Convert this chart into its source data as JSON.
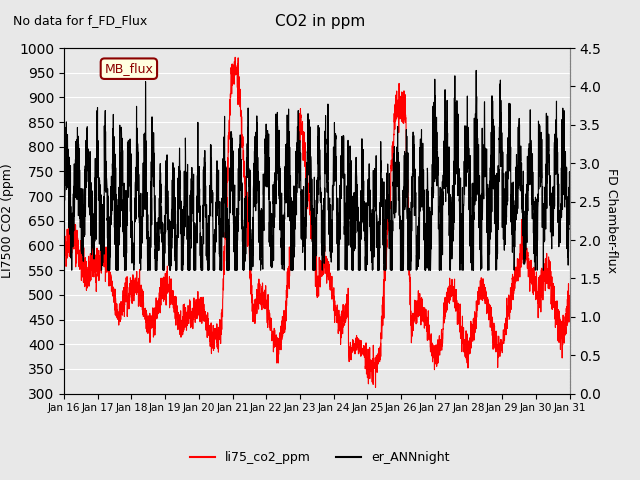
{
  "title": "CO2 in ppm",
  "subtitle": "No data for f_FD_Flux",
  "ylabel_left": "LI7500 CO2 (ppm)",
  "ylabel_right": "FD Chamber-flux",
  "ylim_left": [
    300,
    1000
  ],
  "ylim_right": [
    0.0,
    4.5
  ],
  "yticks_left": [
    300,
    350,
    400,
    450,
    500,
    550,
    600,
    650,
    700,
    750,
    800,
    850,
    900,
    950,
    1000
  ],
  "yticks_right": [
    0.0,
    0.5,
    1.0,
    1.5,
    2.0,
    2.5,
    3.0,
    3.5,
    4.0,
    4.5
  ],
  "xtick_labels": [
    "Jan 16",
    "Jan 17",
    "Jan 18",
    "Jan 19",
    "Jan 20",
    "Jan 21",
    "Jan 22",
    "Jan 23",
    "Jan 24",
    "Jan 25",
    "Jan 26",
    "Jan 27",
    "Jan 28",
    "Jan 29",
    "Jan 30",
    "Jan 31"
  ],
  "legend_entries": [
    "li75_co2_ppm",
    "er_ANNnight"
  ],
  "legend_colors": [
    "red",
    "black"
  ],
  "mb_flux_label": "MB_flux",
  "line1_color": "red",
  "line2_color": "black",
  "bg_color": "#e8e8e8"
}
